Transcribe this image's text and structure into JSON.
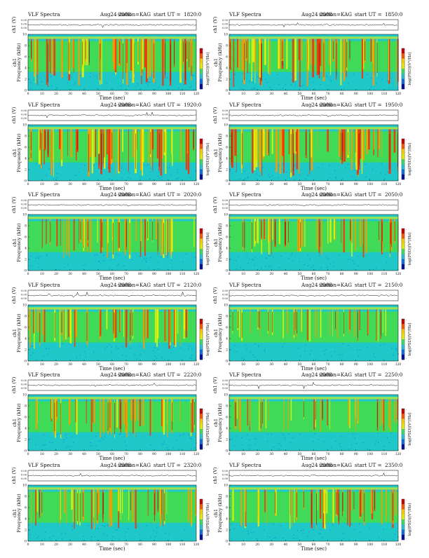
{
  "common": {
    "title": "VLF Spectra",
    "date": "Aug24 2008",
    "station": "station=KAG",
    "start_prefix": "start  UT  =",
    "waveform_ylabel": "ch1 (V)",
    "waveform_ticks": [
      "0.00",
      "0.00",
      "0.00"
    ],
    "spectrogram_ylabel": "Frequency  (kHz)",
    "channel_label": "ch1",
    "colorbar_label": "log(PSD)(V²/Hz)",
    "colorbar_ticks": [
      "-",
      "-"
    ],
    "xlabel": "Time  (sec)",
    "xticks": [
      "0",
      "10",
      "20",
      "30",
      "40",
      "50",
      "60",
      "70",
      "80",
      "90",
      "100",
      "110",
      "120"
    ],
    "yticks": [
      "0",
      "2",
      "4",
      "6",
      "8",
      "10"
    ],
    "colors": {
      "background": "#1fc8c8",
      "midband": "#44dd44",
      "low": "#0b7de0",
      "yellow": "#f4f200",
      "orange": "#ff9a00",
      "red": "#ff2a00",
      "dark": "#800000"
    }
  },
  "chart_data": [
    {
      "type": "heatmap",
      "start_ut": "1820:0",
      "xlim": [
        0,
        120
      ],
      "ylim": [
        0,
        10
      ],
      "xlabel": "Time (sec)",
      "ylabel": "Frequency (kHz)",
      "intensity": "high"
    },
    {
      "type": "heatmap",
      "start_ut": "1850:0",
      "xlim": [
        0,
        120
      ],
      "ylim": [
        0,
        10
      ],
      "xlabel": "Time (sec)",
      "ylabel": "Frequency (kHz)",
      "intensity": "high"
    },
    {
      "type": "heatmap",
      "start_ut": "1920:0",
      "xlim": [
        0,
        120
      ],
      "ylim": [
        0,
        10
      ],
      "xlabel": "Time (sec)",
      "ylabel": "Frequency (kHz)",
      "intensity": "high"
    },
    {
      "type": "heatmap",
      "start_ut": "1950:0",
      "xlim": [
        0,
        120
      ],
      "ylim": [
        0,
        10
      ],
      "xlabel": "Time (sec)",
      "ylabel": "Frequency (kHz)",
      "intensity": "high"
    },
    {
      "type": "heatmap",
      "start_ut": "2020:0",
      "xlim": [
        0,
        120
      ],
      "ylim": [
        0,
        10
      ],
      "xlabel": "Time (sec)",
      "ylabel": "Frequency (kHz)",
      "intensity": "medium"
    },
    {
      "type": "heatmap",
      "start_ut": "2050:0",
      "xlim": [
        0,
        120
      ],
      "ylim": [
        0,
        10
      ],
      "xlabel": "Time (sec)",
      "ylabel": "Frequency (kHz)",
      "intensity": "medium"
    },
    {
      "type": "heatmap",
      "start_ut": "2120:0",
      "xlim": [
        0,
        120
      ],
      "ylim": [
        0,
        10
      ],
      "xlabel": "Time (sec)",
      "ylabel": "Frequency (kHz)",
      "intensity": "medium"
    },
    {
      "type": "heatmap",
      "start_ut": "2150:0",
      "xlim": [
        0,
        120
      ],
      "ylim": [
        0,
        10
      ],
      "xlabel": "Time (sec)",
      "ylabel": "Frequency (kHz)",
      "intensity": "low"
    },
    {
      "type": "heatmap",
      "start_ut": "2220:0",
      "xlim": [
        0,
        120
      ],
      "ylim": [
        0,
        10
      ],
      "xlabel": "Time (sec)",
      "ylabel": "Frequency (kHz)",
      "intensity": "medium"
    },
    {
      "type": "heatmap",
      "start_ut": "2250:0",
      "xlim": [
        0,
        120
      ],
      "ylim": [
        0,
        10
      ],
      "xlabel": "Time (sec)",
      "ylabel": "Frequency (kHz)",
      "intensity": "low"
    },
    {
      "type": "heatmap",
      "start_ut": "2320:0",
      "xlim": [
        0,
        120
      ],
      "ylim": [
        0,
        10
      ],
      "xlabel": "Time (sec)",
      "ylabel": "Frequency (kHz)",
      "intensity": "medium"
    },
    {
      "type": "heatmap",
      "start_ut": "2350:0",
      "xlim": [
        0,
        120
      ],
      "ylim": [
        0,
        10
      ],
      "xlabel": "Time (sec)",
      "ylabel": "Frequency (kHz)",
      "intensity": "medium"
    }
  ]
}
